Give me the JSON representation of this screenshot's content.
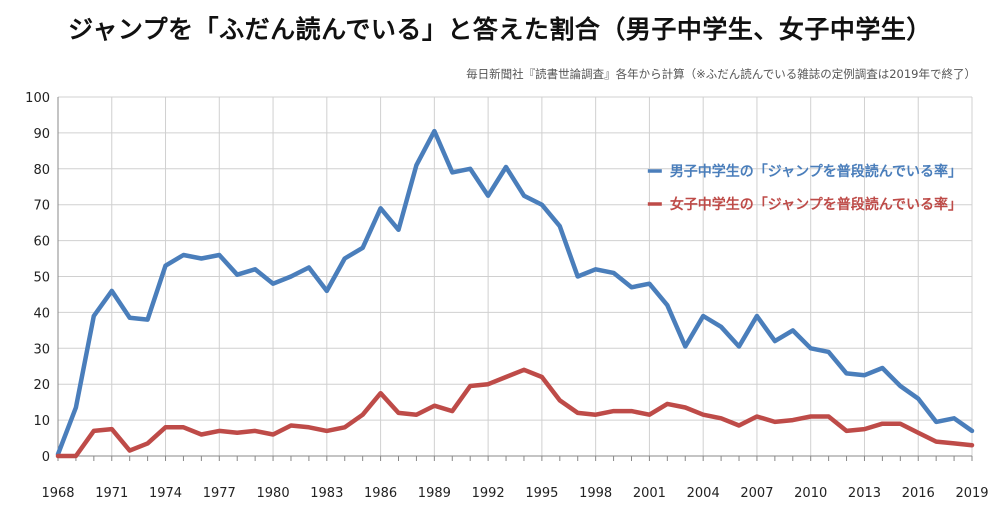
{
  "title": "ジャンプを「ふだん読んでいる」と答えた割合（男子中学生、女子中学生）",
  "source": "毎日新聞社『読書世論調査』各年から計算（※ふだん読んでいる雑誌の定例調査は2019年で終了）",
  "colors": {
    "boys": "#4a7ebb",
    "girls": "#be4b48",
    "grid": "#d0d0d0",
    "axis": "#888888"
  },
  "chart_data": {
    "type": "line",
    "title": "ジャンプを「ふだん読んでいる」と答えた割合（男子中学生、女子中学生）",
    "xlabel": "",
    "ylabel": "",
    "xlim": [
      1968,
      2019
    ],
    "ylim": [
      0,
      100
    ],
    "x_ticks": [
      1968,
      1971,
      1974,
      1977,
      1980,
      1983,
      1986,
      1989,
      1992,
      1995,
      1998,
      2001,
      2004,
      2007,
      2010,
      2013,
      2016,
      2019
    ],
    "y_ticks": [
      0,
      10,
      20,
      30,
      40,
      50,
      60,
      70,
      80,
      90,
      100
    ],
    "grid": true,
    "legend_position": "right",
    "x": [
      1968,
      1969,
      1970,
      1971,
      1972,
      1973,
      1974,
      1975,
      1976,
      1977,
      1978,
      1979,
      1980,
      1981,
      1982,
      1983,
      1984,
      1985,
      1986,
      1987,
      1988,
      1989,
      1990,
      1991,
      1992,
      1993,
      1994,
      1995,
      1996,
      1997,
      1998,
      1999,
      2000,
      2001,
      2002,
      2003,
      2004,
      2005,
      2006,
      2007,
      2008,
      2009,
      2010,
      2011,
      2012,
      2013,
      2014,
      2015,
      2016,
      2017,
      2018,
      2019
    ],
    "series": [
      {
        "name": "男子中学生の「ジャンプを普段読んでいる率」",
        "values": [
          0.5,
          13.5,
          39,
          46,
          38.5,
          38,
          53,
          56,
          55,
          56,
          50.5,
          52,
          48,
          50,
          52.5,
          46,
          55,
          58,
          69,
          63,
          81,
          90.5,
          79,
          80,
          72.5,
          80.5,
          72.5,
          70,
          64,
          50,
          52,
          51,
          47,
          48,
          42,
          30.5,
          39,
          36,
          30.5,
          39,
          32,
          35,
          30,
          29,
          23,
          22.5,
          24.5,
          19.5,
          16,
          9.5,
          10.5,
          7
        ]
      },
      {
        "name": "女子中学生の「ジャンプを普段読んでいる率」",
        "values": [
          0,
          0,
          7,
          7.5,
          1.5,
          3.5,
          8,
          8,
          6,
          7,
          6.5,
          7,
          6,
          8.5,
          8,
          7,
          8,
          11.5,
          17.5,
          12,
          11.5,
          14,
          12.5,
          19.5,
          20,
          22,
          24,
          22,
          15.5,
          12,
          11.5,
          12.5,
          12.5,
          11.5,
          14.5,
          13.5,
          11.5,
          10.5,
          8.5,
          11,
          9.5,
          10,
          11,
          11,
          7,
          7.5,
          9,
          9,
          6.5,
          4,
          3.5,
          3
        ]
      }
    ]
  }
}
